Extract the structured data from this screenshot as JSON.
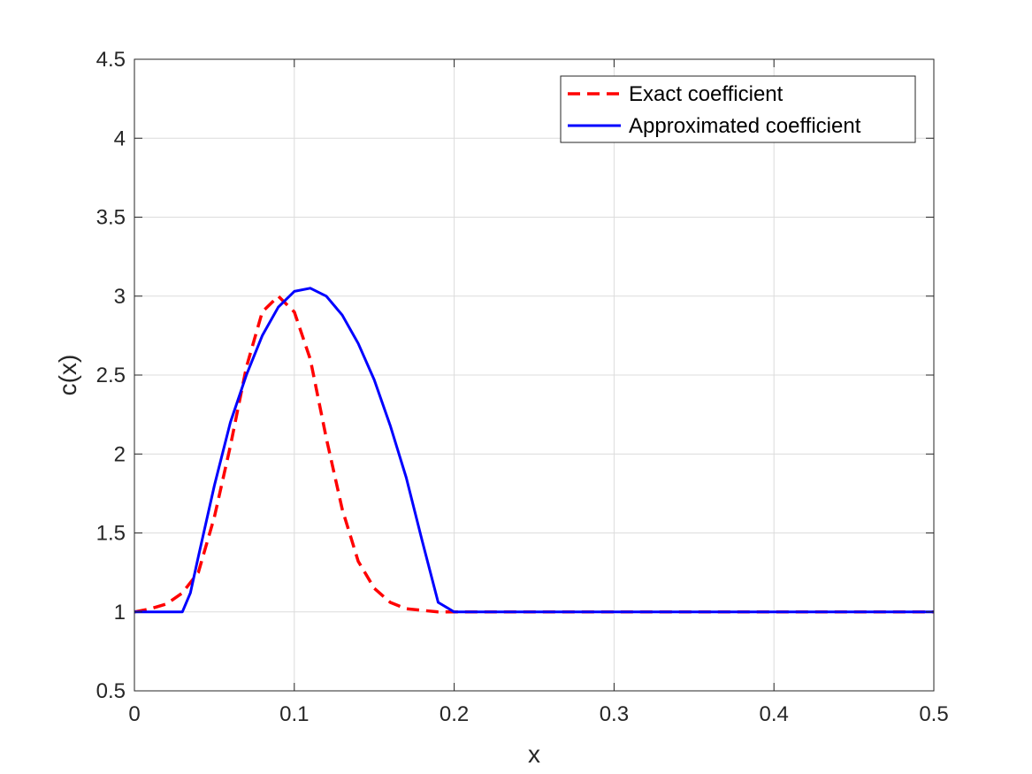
{
  "chart_data": {
    "type": "line",
    "title": "",
    "xlabel": "x",
    "ylabel": "c(x)",
    "xlim": [
      0,
      0.5
    ],
    "ylim": [
      0.5,
      4.5
    ],
    "xticks": [
      0,
      0.1,
      0.2,
      0.3,
      0.4,
      0.5
    ],
    "xtick_labels": [
      "0",
      "0.1",
      "0.2",
      "0.3",
      "0.4",
      "0.5"
    ],
    "yticks": [
      0.5,
      1,
      1.5,
      2,
      2.5,
      3,
      3.5,
      4,
      4.5
    ],
    "ytick_labels": [
      "0.5",
      "1",
      "1.5",
      "2",
      "2.5",
      "3",
      "3.5",
      "4",
      "4.5"
    ],
    "grid": true,
    "legend_position": "top-right",
    "series": [
      {
        "name": "Exact coefficient",
        "color": "#ff0000",
        "style": "dashed",
        "x": [
          0,
          0.01,
          0.02,
          0.03,
          0.04,
          0.05,
          0.06,
          0.07,
          0.08,
          0.09,
          0.1,
          0.11,
          0.12,
          0.13,
          0.14,
          0.15,
          0.16,
          0.17,
          0.18,
          0.19,
          0.2,
          0.25,
          0.3,
          0.35,
          0.4,
          0.45,
          0.5
        ],
        "y": [
          1.0,
          1.02,
          1.05,
          1.12,
          1.25,
          1.6,
          2.05,
          2.55,
          2.9,
          3.0,
          2.9,
          2.6,
          2.1,
          1.65,
          1.32,
          1.15,
          1.06,
          1.02,
          1.01,
          1.0,
          1.0,
          1.0,
          1.0,
          1.0,
          1.0,
          1.0,
          1.0
        ]
      },
      {
        "name": "Approximated coefficient",
        "color": "#0000ff",
        "style": "solid",
        "x": [
          0,
          0.03,
          0.035,
          0.04,
          0.05,
          0.06,
          0.07,
          0.08,
          0.09,
          0.1,
          0.11,
          0.12,
          0.13,
          0.14,
          0.15,
          0.16,
          0.17,
          0.18,
          0.19,
          0.2,
          0.25,
          0.3,
          0.35,
          0.4,
          0.45,
          0.5
        ],
        "y": [
          1.0,
          1.0,
          1.12,
          1.35,
          1.8,
          2.2,
          2.5,
          2.75,
          2.93,
          3.03,
          3.05,
          3.0,
          2.88,
          2.7,
          2.47,
          2.18,
          1.85,
          1.45,
          1.06,
          1.0,
          1.0,
          1.0,
          1.0,
          1.0,
          1.0,
          1.0
        ]
      }
    ]
  }
}
